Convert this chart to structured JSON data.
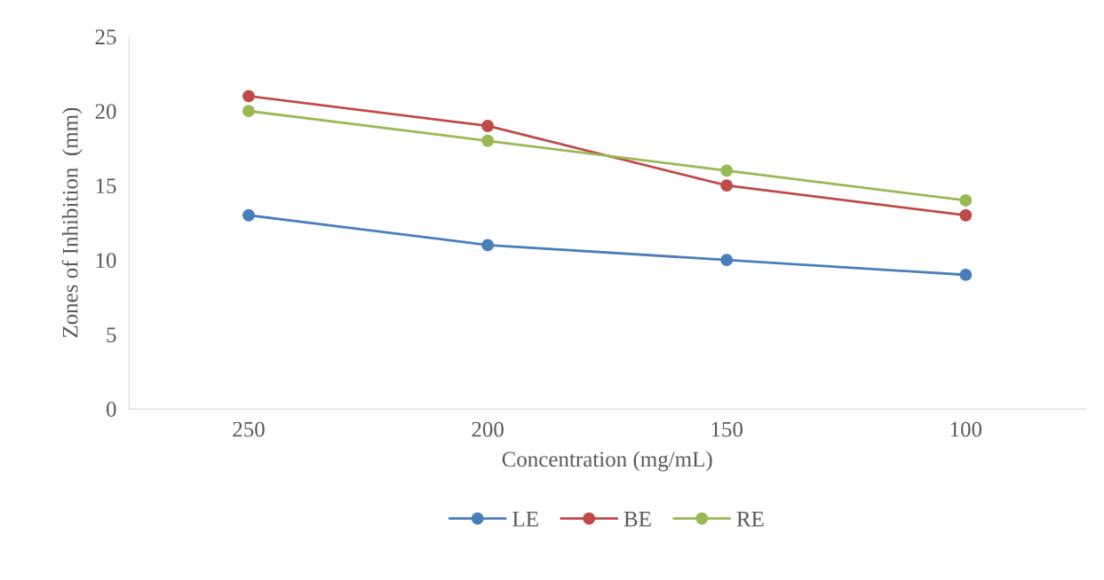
{
  "chart_data": {
    "type": "line",
    "xlabel": "Concentration (mg/mL)",
    "ylabel": "Zones of Inhibition  (mm)",
    "categories": [
      "250",
      "200",
      "150",
      "100"
    ],
    "series": [
      {
        "name": "LE",
        "color": "#4a7ebb",
        "values": [
          13,
          11,
          10,
          9
        ]
      },
      {
        "name": "BE",
        "color": "#be4b48",
        "values": [
          21,
          19,
          15,
          13
        ]
      },
      {
        "name": "RE",
        "color": "#98b954",
        "values": [
          20,
          18,
          16,
          14
        ]
      }
    ],
    "ylim": [
      0,
      25
    ],
    "yticks": [
      0,
      5,
      10,
      15,
      20,
      25
    ],
    "grid": false,
    "legend": "bottom",
    "marker": "circle",
    "line_style": "solid"
  }
}
